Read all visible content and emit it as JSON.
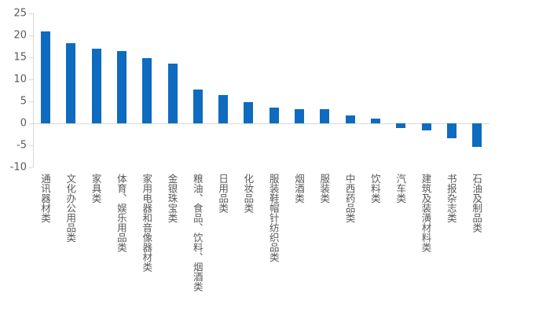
{
  "chart_data": {
    "type": "bar",
    "title": "",
    "xlabel": "",
    "ylabel": "",
    "ylim": [
      -10,
      25
    ],
    "yticks": [
      25,
      20,
      15,
      10,
      5,
      0,
      -5,
      -10
    ],
    "grid": false,
    "legend": null,
    "bar_color": "#0e6bbf",
    "categories": [
      "通讯器材类",
      "文化办公用品类",
      "家具类",
      "体育、娱乐用品类",
      "家用电器和音像器材类",
      "金银珠宝类",
      "粮油、食品、饮料、烟酒类",
      "日用品类",
      "化妆品类",
      "服装鞋帽针纺织品类",
      "烟酒类",
      "服装类",
      "中西药品类",
      "饮料类",
      "汽车类",
      "建筑及装潢材料类",
      "书报杂志类",
      "石油及制品类"
    ],
    "values": [
      20.9,
      18.3,
      16.9,
      16.4,
      14.8,
      13.6,
      7.6,
      6.5,
      4.8,
      3.6,
      3.3,
      3.2,
      1.8,
      1.1,
      -1.1,
      -1.6,
      -3.4,
      -5.4
    ]
  }
}
